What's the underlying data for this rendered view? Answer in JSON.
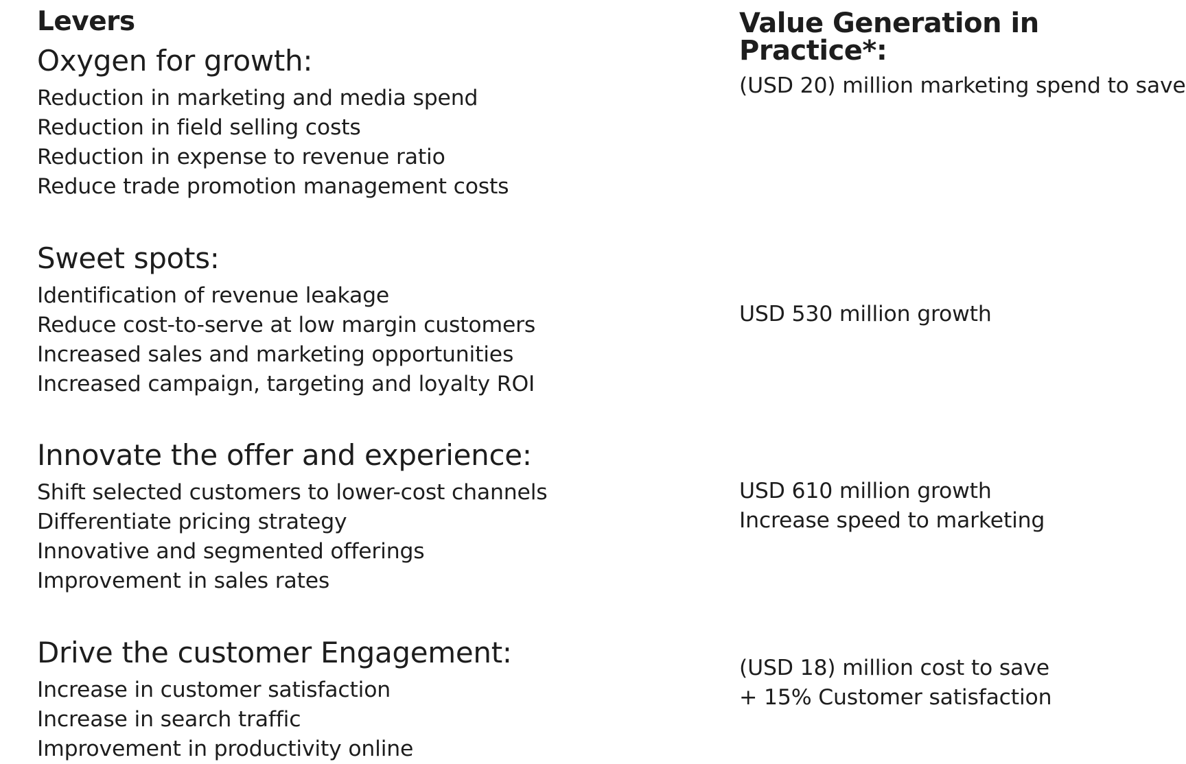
{
  "headers": {
    "levers": "Levers",
    "value": "Value Generation in Practice*:"
  },
  "sections": [
    {
      "title": "Oxygen for growth:",
      "items": [
        "Reduction in marketing and media spend",
        "Reduction in field selling costs",
        "Reduction in expense to revenue ratio",
        "Reduce trade promotion management costs"
      ],
      "value": [
        "(USD 20) million marketing spend to save"
      ]
    },
    {
      "title": "Sweet spots:",
      "items": [
        "Identification of revenue leakage",
        "Reduce cost-to-serve at low margin customers",
        "Increased sales and marketing opportunities",
        "Increased campaign, targeting and loyalty ROI"
      ],
      "value": [
        "USD 530 million growth"
      ]
    },
    {
      "title": "Innovate the offer and experience:",
      "items": [
        "Shift selected customers to lower-cost channels",
        "Differentiate pricing strategy",
        "Innovative and segmented offerings",
        "Improvement in sales rates"
      ],
      "value": [
        "USD 610 million growth",
        "Increase speed to marketing"
      ]
    },
    {
      "title": "Drive the customer Engagement:",
      "items": [
        "Increase in customer satisfaction",
        "Increase in search traffic",
        "Improvement in productivity online"
      ],
      "value": [
        "(USD 18) million cost to save",
        "+ 15% Customer satisfaction"
      ]
    }
  ]
}
